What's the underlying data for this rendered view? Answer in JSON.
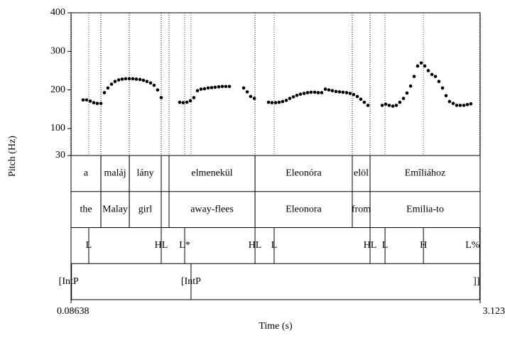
{
  "chart_data": {
    "type": "scatter",
    "ylabel": "Pitch (Hz)",
    "xlabel": "Time (s)",
    "xlim": [
      0.08638,
      3.123
    ],
    "xticks": [
      0.08638,
      3.123
    ],
    "ylim": [
      30,
      400
    ],
    "yticks": [
      30,
      100,
      200,
      300,
      400
    ],
    "color": "#000000",
    "x": [
      0.176,
      0.202,
      0.229,
      0.255,
      0.281,
      0.308,
      0.334,
      0.36,
      0.387,
      0.413,
      0.44,
      0.466,
      0.492,
      0.519,
      0.545,
      0.571,
      0.598,
      0.624,
      0.65,
      0.677,
      0.703,
      0.729,
      0.756,
      0.893,
      0.919,
      0.946,
      0.972,
      0.998,
      1.025,
      1.051,
      1.077,
      1.104,
      1.13,
      1.156,
      1.183,
      1.209,
      1.235,
      1.262,
      1.368,
      1.394,
      1.42,
      1.447,
      1.552,
      1.578,
      1.605,
      1.631,
      1.657,
      1.684,
      1.71,
      1.737,
      1.763,
      1.789,
      1.816,
      1.842,
      1.868,
      1.895,
      1.921,
      1.947,
      1.974,
      2.0,
      2.026,
      2.053,
      2.079,
      2.105,
      2.132,
      2.158,
      2.184,
      2.211,
      2.237,
      2.263,
      2.29,
      2.396,
      2.422,
      2.448,
      2.475,
      2.501,
      2.527,
      2.554,
      2.58,
      2.607,
      2.633,
      2.659,
      2.686,
      2.712,
      2.738,
      2.765,
      2.791,
      2.817,
      2.844,
      2.87,
      2.896,
      2.923,
      2.949,
      2.975,
      3.002,
      3.028,
      3.054
    ],
    "values": [
      174,
      174,
      171,
      167,
      165,
      165,
      193,
      205,
      215,
      222,
      226,
      228,
      229,
      229,
      229,
      228,
      227,
      225,
      222,
      218,
      212,
      200,
      180,
      168,
      167,
      168,
      172,
      180,
      198,
      202,
      203,
      205,
      206,
      207,
      208,
      209,
      209,
      209,
      205,
      195,
      183,
      178,
      168,
      167,
      167,
      168,
      170,
      173,
      178,
      182,
      186,
      189,
      191,
      193,
      194,
      194,
      193,
      193,
      202,
      200,
      198,
      196,
      195,
      194,
      193,
      191,
      188,
      183,
      176,
      168,
      160,
      160,
      163,
      160,
      158,
      160,
      168,
      178,
      192,
      210,
      235,
      262,
      270,
      262,
      250,
      240,
      235,
      222,
      205,
      185,
      170,
      165,
      160,
      160,
      160,
      162,
      164
    ],
    "tiers": [
      {
        "intervals": [
          {
            "start": 0.08638,
            "end": 0.308,
            "text": "a"
          },
          {
            "start": 0.308,
            "end": 0.519,
            "text": "maláj"
          },
          {
            "start": 0.519,
            "end": 0.756,
            "text": "lány"
          },
          {
            "start": 0.814,
            "end": 1.452,
            "text": "elmenekül"
          },
          {
            "start": 1.452,
            "end": 2.174,
            "text": "Eleonóra"
          },
          {
            "start": 2.174,
            "end": 2.306,
            "text": "elöl"
          },
          {
            "start": 2.306,
            "end": 3.123,
            "text": "Emîliához"
          }
        ]
      },
      {
        "intervals": [
          {
            "start": 0.08638,
            "end": 0.308,
            "text": "the"
          },
          {
            "start": 0.308,
            "end": 0.519,
            "text": "Malay"
          },
          {
            "start": 0.519,
            "end": 0.756,
            "text": "girl"
          },
          {
            "start": 0.814,
            "end": 1.452,
            "text": "away-flees"
          },
          {
            "start": 1.452,
            "end": 2.174,
            "text": "Eleonora"
          },
          {
            "start": 2.174,
            "end": 2.306,
            "text": "from"
          },
          {
            "start": 2.306,
            "end": 3.123,
            "text": "Emilia-to"
          }
        ]
      },
      {
        "points": [
          {
            "time": 0.218,
            "text": "L"
          },
          {
            "time": 0.756,
            "text": "HL"
          },
          {
            "time": 0.93,
            "text": "L*"
          },
          {
            "time": 1.452,
            "text": "HL"
          },
          {
            "time": 1.594,
            "text": "L"
          },
          {
            "time": 2.306,
            "text": "HL"
          },
          {
            "time": 2.417,
            "text": "L"
          },
          {
            "time": 2.702,
            "text": "H"
          },
          {
            "time": 3.12,
            "text": "L%"
          }
        ]
      },
      {
        "points": [
          {
            "time": 0.09,
            "text": "[IntP"
          },
          {
            "time": 0.977,
            "text": "[IntP"
          },
          {
            "time": 3.12,
            "text": "]]"
          }
        ]
      }
    ]
  }
}
